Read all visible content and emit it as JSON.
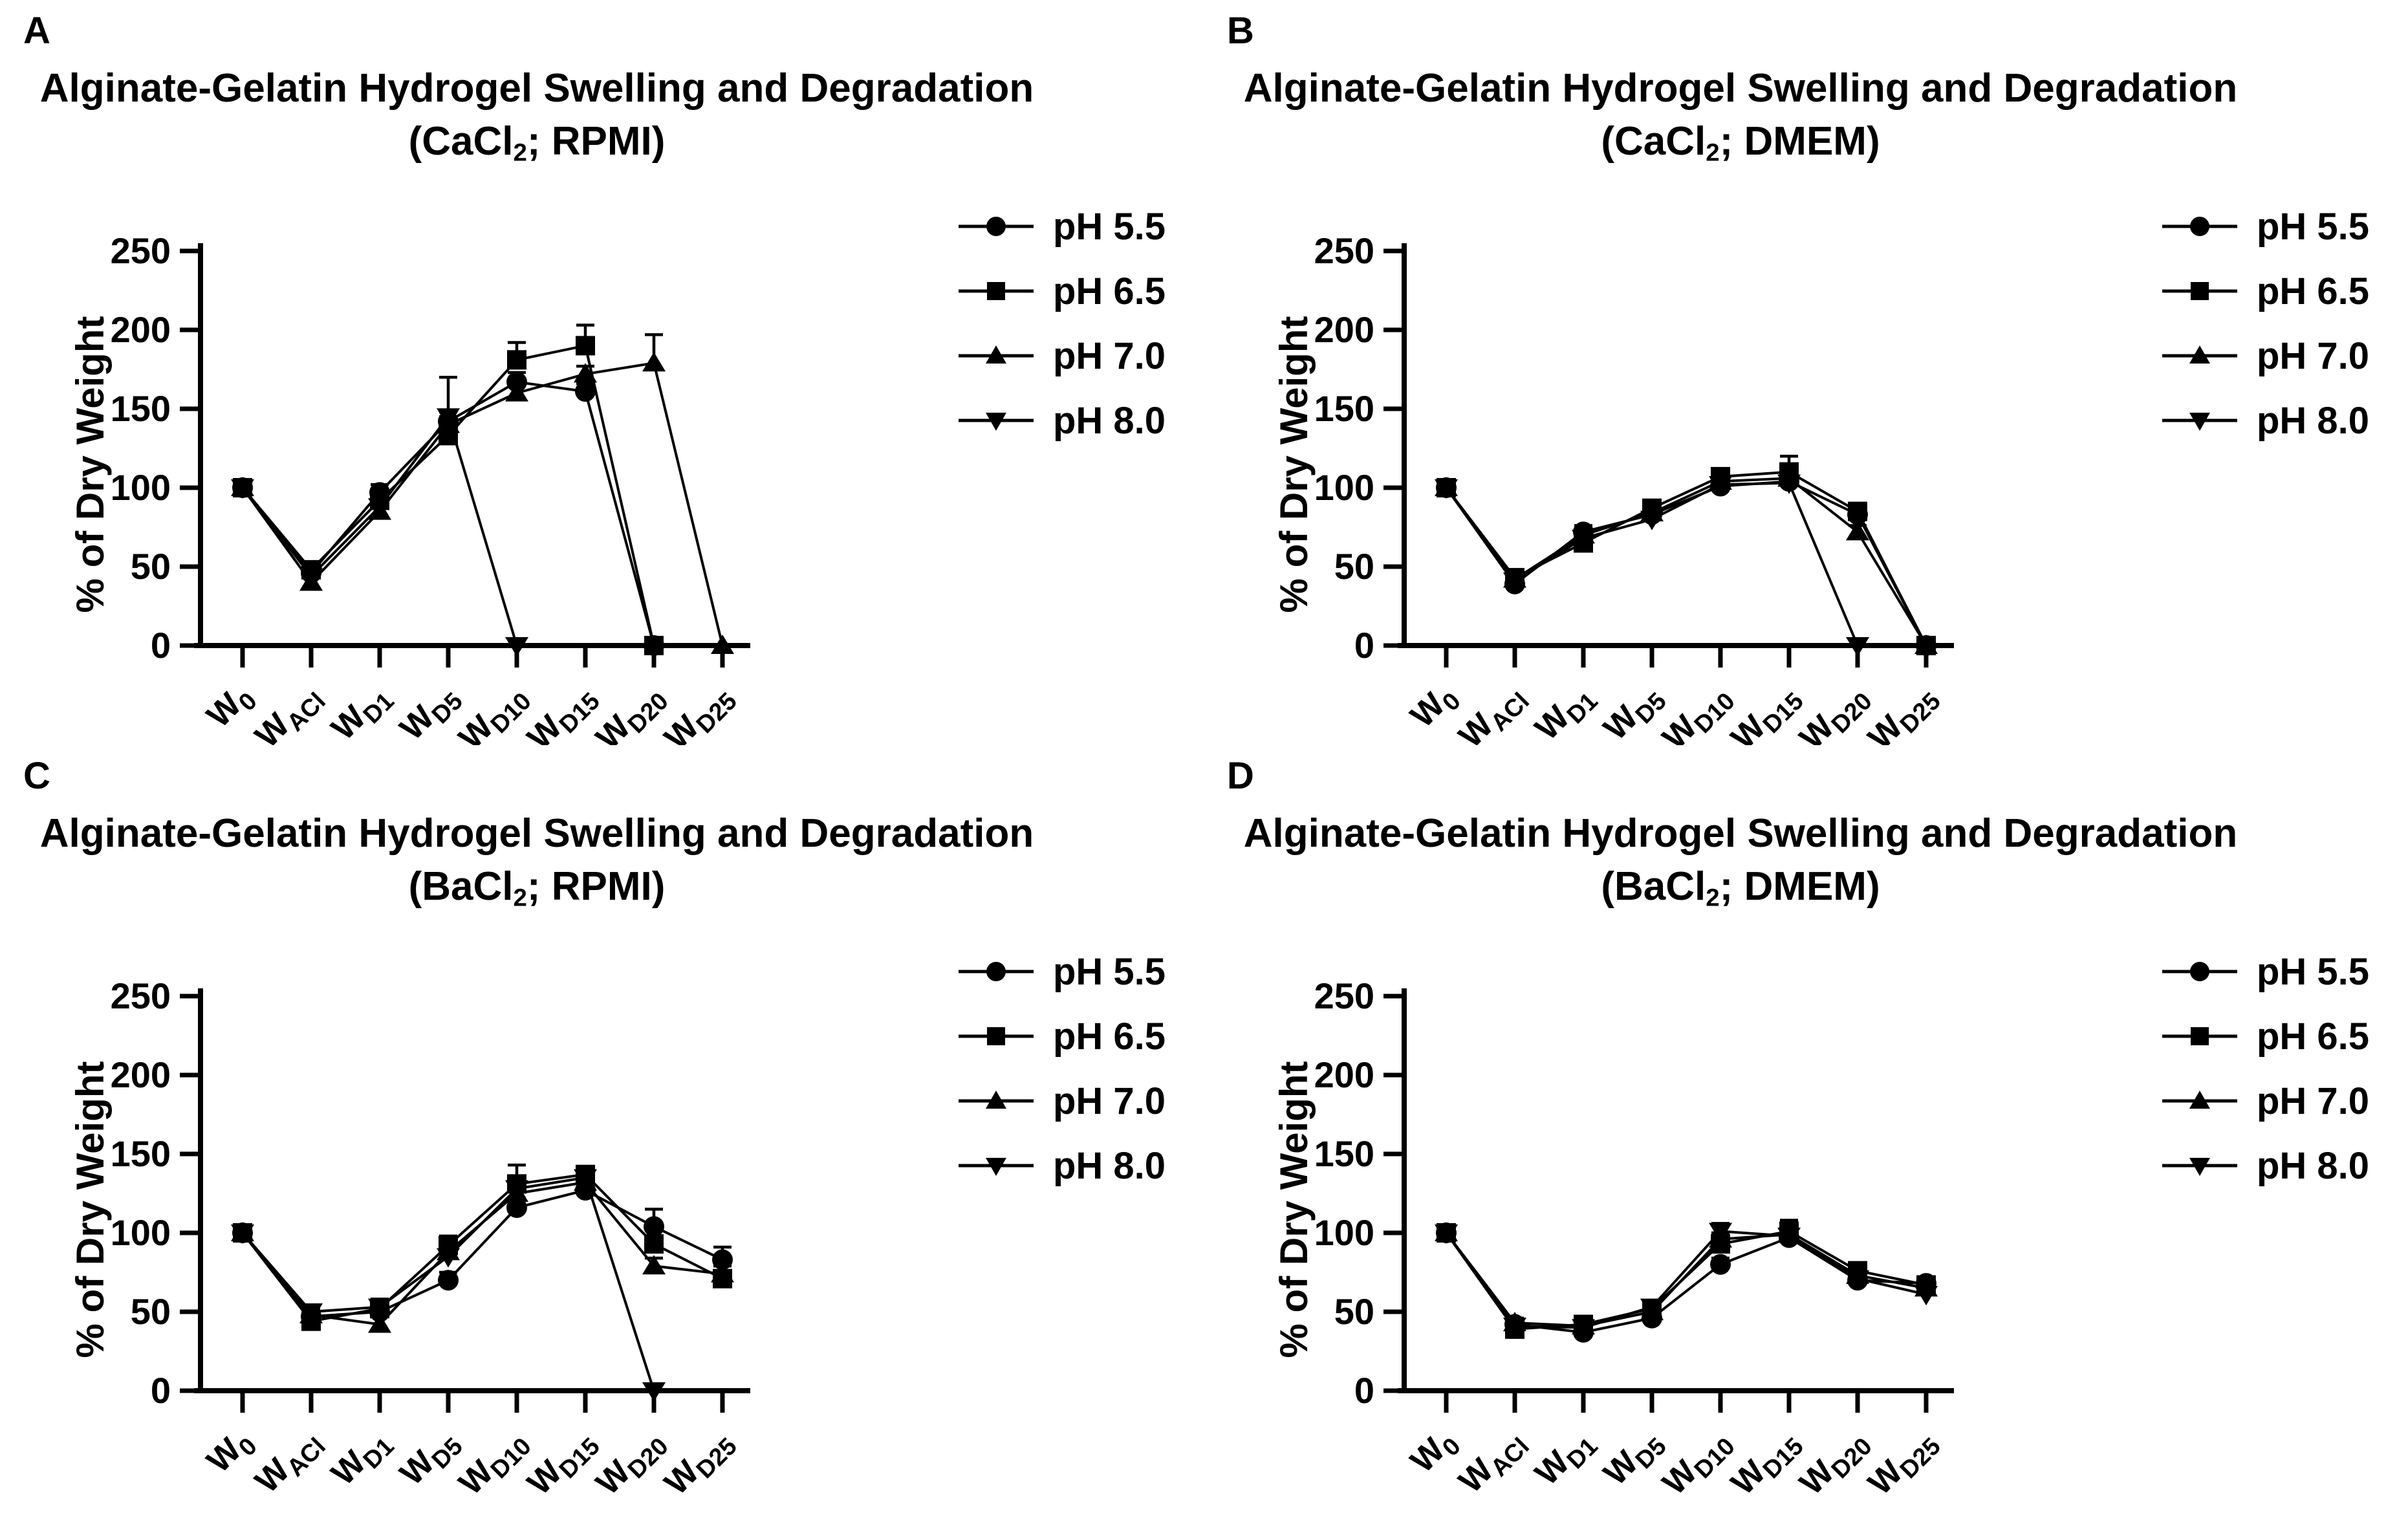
{
  "figure": {
    "background": "#ffffff",
    "ink": "#000000",
    "panels": [
      {
        "id": "A",
        "letter": "A",
        "title_line1": "Alginate-Gelatin Hydrogel Swelling and Degradation",
        "title2_pre": "(CaCl",
        "title2_sub": "2",
        "title2_post": "; RPMI)"
      },
      {
        "id": "B",
        "letter": "B",
        "title_line1": "Alginate-Gelatin Hydrogel Swelling and Degradation",
        "title2_pre": "(CaCl",
        "title2_sub": "2",
        "title2_post": "; DMEM)"
      },
      {
        "id": "C",
        "letter": "C",
        "title_line1": "Alginate-Gelatin Hydrogel Swelling and Degradation",
        "title2_pre": "(BaCl",
        "title2_sub": "2",
        "title2_post": "; RPMI)"
      },
      {
        "id": "D",
        "letter": "D",
        "title_line1": "Alginate-Gelatin Hydrogel Swelling and Degradation",
        "title2_pre": "(BaCl",
        "title2_sub": "2",
        "title2_post": "; DMEM)"
      }
    ]
  },
  "chart_data": [
    {
      "panel": "A",
      "type": "line",
      "title": "Alginate-Gelatin Hydrogel Swelling and Degradation (CaCl2; RPMI)",
      "xlabel": "",
      "ylabel": "% of Dry Weight",
      "ylim": [
        0,
        250
      ],
      "yticks": [
        0,
        50,
        100,
        150,
        200,
        250
      ],
      "grid": false,
      "legend_position": "right",
      "categories": [
        {
          "label": "W0",
          "main": "W",
          "sub": "0"
        },
        {
          "label": "WACl",
          "main": "W",
          "sub": "ACl"
        },
        {
          "label": "WD1",
          "main": "W",
          "sub": "D1"
        },
        {
          "label": "WD5",
          "main": "W",
          "sub": "D5"
        },
        {
          "label": "WD10",
          "main": "W",
          "sub": "D10"
        },
        {
          "label": "WD15",
          "main": "W",
          "sub": "D15"
        },
        {
          "label": "WD20",
          "main": "W",
          "sub": "D20"
        },
        {
          "label": "WD25",
          "main": "W",
          "sub": "D25"
        }
      ],
      "series": [
        {
          "name": "pH 5.5",
          "marker": "circle",
          "values": [
            100,
            46,
            97,
            142,
            167,
            161,
            0,
            null
          ],
          "err_up": [
            0,
            4,
            5,
            6,
            6,
            5,
            0,
            null
          ]
        },
        {
          "name": "pH 6.5",
          "marker": "square",
          "values": [
            100,
            48,
            92,
            133,
            181,
            190,
            0,
            null
          ],
          "err_up": [
            0,
            4,
            4,
            5,
            11,
            13,
            0,
            null
          ]
        },
        {
          "name": "pH 7.0",
          "marker": "triangle-up",
          "values": [
            100,
            40,
            85,
            140,
            160,
            172,
            179,
            0
          ],
          "err_up": [
            0,
            4,
            4,
            5,
            5,
            5,
            18,
            0
          ]
        },
        {
          "name": "pH 8.0",
          "marker": "triangle-down",
          "values": [
            100,
            44,
            88,
            145,
            0,
            null,
            null,
            null
          ],
          "err_up": [
            0,
            4,
            4,
            25,
            0,
            null,
            null,
            null
          ]
        }
      ]
    },
    {
      "panel": "B",
      "type": "line",
      "title": "Alginate-Gelatin Hydrogel Swelling and Degradation (CaCl2; DMEM)",
      "xlabel": "",
      "ylabel": "% of Dry Weight",
      "ylim": [
        0,
        250
      ],
      "yticks": [
        0,
        50,
        100,
        150,
        200,
        250
      ],
      "grid": false,
      "legend_position": "right",
      "categories": [
        {
          "label": "W0",
          "main": "W",
          "sub": "0"
        },
        {
          "label": "WACl",
          "main": "W",
          "sub": "ACl"
        },
        {
          "label": "WD1",
          "main": "W",
          "sub": "D1"
        },
        {
          "label": "WD5",
          "main": "W",
          "sub": "D5"
        },
        {
          "label": "WD10",
          "main": "W",
          "sub": "D10"
        },
        {
          "label": "WD15",
          "main": "W",
          "sub": "D15"
        },
        {
          "label": "WD20",
          "main": "W",
          "sub": "D20"
        },
        {
          "label": "WD25",
          "main": "W",
          "sub": "D25"
        }
      ],
      "series": [
        {
          "name": "pH 5.5",
          "marker": "circle",
          "values": [
            100,
            39,
            72,
            83,
            101,
            104,
            83,
            0
          ],
          "err_up": [
            0,
            3,
            4,
            4,
            4,
            4,
            4,
            0
          ]
        },
        {
          "name": "pH 6.5",
          "marker": "square",
          "values": [
            100,
            43,
            65,
            87,
            107,
            110,
            85,
            0
          ],
          "err_up": [
            0,
            3,
            3,
            4,
            4,
            10,
            4,
            0
          ]
        },
        {
          "name": "pH 7.0",
          "marker": "triangle-up",
          "values": [
            100,
            42,
            70,
            84,
            104,
            106,
            72,
            0
          ],
          "err_up": [
            0,
            3,
            3,
            4,
            4,
            4,
            4,
            0
          ]
        },
        {
          "name": "pH 8.0",
          "marker": "triangle-down",
          "values": [
            100,
            41,
            68,
            80,
            102,
            103,
            0,
            null
          ],
          "err_up": [
            0,
            3,
            3,
            4,
            4,
            4,
            0,
            null
          ]
        }
      ]
    },
    {
      "panel": "C",
      "type": "line",
      "title": "Alginate-Gelatin Hydrogel Swelling and Degradation (BaCl2; RPMI)",
      "xlabel": "",
      "ylabel": "% of Dry Weight",
      "ylim": [
        0,
        250
      ],
      "yticks": [
        0,
        50,
        100,
        150,
        200,
        250
      ],
      "grid": false,
      "legend_position": "right",
      "categories": [
        {
          "label": "W0",
          "main": "W",
          "sub": "0"
        },
        {
          "label": "WACl",
          "main": "W",
          "sub": "ACl"
        },
        {
          "label": "WD1",
          "main": "W",
          "sub": "D1"
        },
        {
          "label": "WD5",
          "main": "W",
          "sub": "D5"
        },
        {
          "label": "WD10",
          "main": "W",
          "sub": "D10"
        },
        {
          "label": "WD15",
          "main": "W",
          "sub": "D15"
        },
        {
          "label": "WD20",
          "main": "W",
          "sub": "D20"
        },
        {
          "label": "WD25",
          "main": "W",
          "sub": "D25"
        }
      ],
      "series": [
        {
          "name": "pH 5.5",
          "marker": "circle",
          "values": [
            100,
            47,
            50,
            70,
            116,
            127,
            104,
            83
          ],
          "err_up": [
            0,
            4,
            5,
            5,
            6,
            5,
            11,
            8
          ]
        },
        {
          "name": "pH 6.5",
          "marker": "square",
          "values": [
            100,
            44,
            52,
            92,
            131,
            137,
            93,
            71
          ],
          "err_up": [
            0,
            4,
            6,
            6,
            12,
            4,
            5,
            5
          ]
        },
        {
          "name": "pH 7.0",
          "marker": "triangle-up",
          "values": [
            100,
            48,
            42,
            88,
            125,
            132,
            79,
            74
          ],
          "err_up": [
            0,
            4,
            5,
            6,
            6,
            5,
            5,
            5
          ]
        },
        {
          "name": "pH 8.0",
          "marker": "triangle-down",
          "values": [
            100,
            50,
            53,
            85,
            128,
            135,
            0,
            null
          ],
          "err_up": [
            0,
            4,
            5,
            6,
            6,
            5,
            0,
            null
          ]
        }
      ]
    },
    {
      "panel": "D",
      "type": "line",
      "title": "Alginate-Gelatin Hydrogel Swelling and Degradation (BaCl2; DMEM)",
      "xlabel": "",
      "ylabel": "% of Dry Weight",
      "ylim": [
        0,
        250
      ],
      "yticks": [
        0,
        50,
        100,
        150,
        200,
        250
      ],
      "grid": false,
      "legend_position": "right",
      "categories": [
        {
          "label": "W0",
          "main": "W",
          "sub": "0"
        },
        {
          "label": "WACl",
          "main": "W",
          "sub": "ACl"
        },
        {
          "label": "WD1",
          "main": "W",
          "sub": "D1"
        },
        {
          "label": "WD5",
          "main": "W",
          "sub": "D5"
        },
        {
          "label": "WD10",
          "main": "W",
          "sub": "D10"
        },
        {
          "label": "WD15",
          "main": "W",
          "sub": "D15"
        },
        {
          "label": "WD20",
          "main": "W",
          "sub": "D20"
        },
        {
          "label": "WD25",
          "main": "W",
          "sub": "D25"
        }
      ],
      "series": [
        {
          "name": "pH 5.5",
          "marker": "circle",
          "values": [
            100,
            42,
            37,
            46,
            80,
            97,
            70,
            68
          ],
          "err_up": [
            0,
            3,
            3,
            3,
            4,
            4,
            3,
            4
          ]
        },
        {
          "name": "pH 6.5",
          "marker": "square",
          "values": [
            100,
            39,
            42,
            52,
            93,
            101,
            76,
            67
          ],
          "err_up": [
            0,
            3,
            3,
            3,
            5,
            7,
            3,
            3
          ]
        },
        {
          "name": "pH 7.0",
          "marker": "triangle-up",
          "values": [
            100,
            43,
            41,
            50,
            96,
            99,
            73,
            65
          ],
          "err_up": [
            0,
            3,
            3,
            3,
            4,
            4,
            3,
            3
          ]
        },
        {
          "name": "pH 8.0",
          "marker": "triangle-down",
          "values": [
            100,
            41,
            40,
            53,
            101,
            98,
            71,
            61
          ],
          "err_up": [
            0,
            3,
            3,
            4,
            5,
            4,
            3,
            3
          ]
        }
      ]
    }
  ]
}
